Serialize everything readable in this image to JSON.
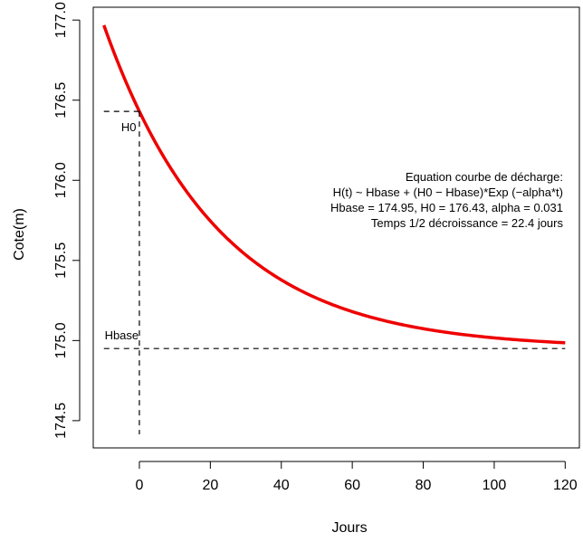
{
  "chart_data": {
    "type": "line",
    "xlabel": "Jours",
    "ylabel": "Cote(m)",
    "xlim": [
      -13,
      124
    ],
    "ylim": [
      174.33,
      177.08
    ],
    "x_ticks": [
      0,
      20,
      40,
      60,
      80,
      100,
      120
    ],
    "y_ticks": [
      174.5,
      175.0,
      175.5,
      176.0,
      176.5,
      177.0
    ],
    "y_tick_labels": [
      "174.5",
      "175.0",
      "175.5",
      "176.0",
      "176.5",
      "177.0"
    ],
    "model": {
      "Hbase": 174.95,
      "H0": 176.43,
      "alpha": 0.031,
      "t_start": -10,
      "t_end": 120
    },
    "reference_lines": {
      "H0_label": "H0",
      "Hbase_label": "Hbase"
    },
    "annotation": [
      "Equation courbe de décharge:",
      "H(t) ~ Hbase + (H0 − Hbase)*Exp (−alpha*t)",
      "Hbase = 174.95, H0 = 176.43, alpha = 0.031",
      "Temps 1/2 décroissance = 22.4 jours"
    ],
    "colors": {
      "curve": "#ee0000",
      "reference": "#000000"
    },
    "grid": false
  }
}
